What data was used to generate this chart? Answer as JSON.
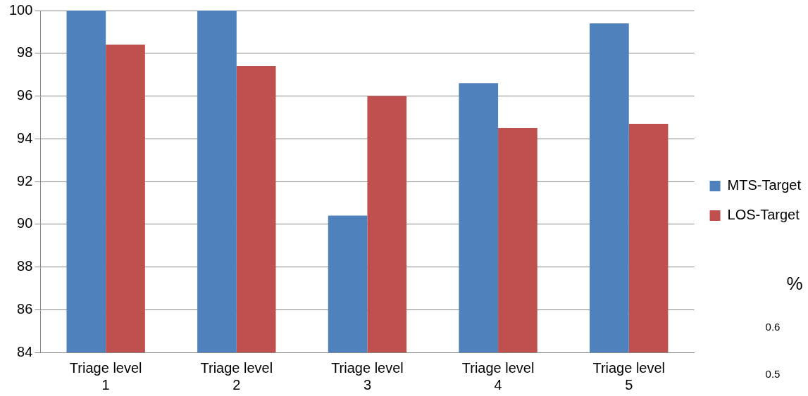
{
  "chart_data": {
    "type": "bar",
    "categories": [
      "Triage level 1",
      "Triage level 2",
      "Triage level 3",
      "Triage level 4",
      "Triage level 5"
    ],
    "series": [
      {
        "name": "MTS-Target",
        "color": "#4f81bd",
        "values": [
          100,
          100,
          90.4,
          96.6,
          99.4
        ]
      },
      {
        "name": "LOS-Target",
        "color": "#c0504d",
        "values": [
          98.4,
          97.4,
          96.0,
          94.5,
          94.7
        ]
      }
    ],
    "ylim": [
      84,
      100
    ],
    "yticks": [
      84,
      86,
      88,
      90,
      92,
      94,
      96,
      98,
      100
    ],
    "grid": "y",
    "legend": "right",
    "annotations": [
      "%",
      "0.6",
      "0.5"
    ]
  }
}
